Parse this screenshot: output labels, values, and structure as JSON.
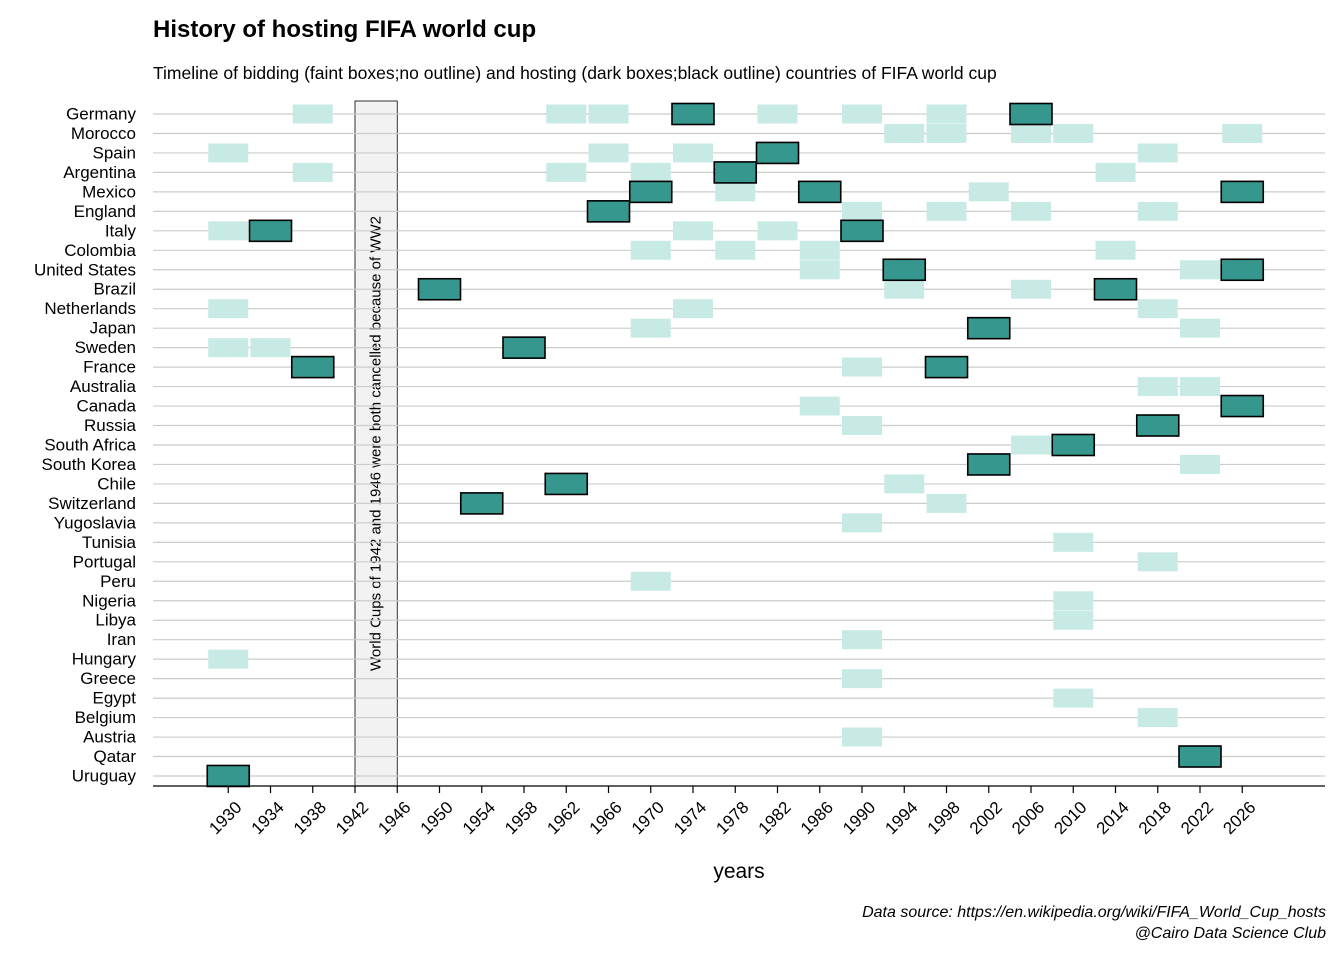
{
  "title": "History of hosting FIFA world cup",
  "subtitle": "Timeline of bidding (faint boxes;no outline) and hosting (dark boxes;black outline) countries of FIFA world cup",
  "caption": {
    "line1": "Data source: https://en.wikipedia.org/wiki/FIFA_World_Cup_hosts",
    "line2": "@Cairo Data Science Club"
  },
  "colors": {
    "host_fill": "#36978F",
    "bid_fill": "#C8EAE5",
    "gridline": "#CCCCCC",
    "annotation_fill": "#F2F2F2"
  },
  "chart_data": {
    "type": "timeline",
    "xlabel": "years",
    "ylabel": "",
    "x_ticks": [
      1930,
      1934,
      1938,
      1942,
      1946,
      1950,
      1954,
      1958,
      1962,
      1966,
      1970,
      1974,
      1978,
      1982,
      1986,
      1990,
      1994,
      1998,
      2002,
      2006,
      2010,
      2014,
      2018,
      2022,
      2026
    ],
    "xlim": [
      1926.5,
      2031
    ],
    "annotation": {
      "text": "World Cups of 1942 and 1946 were both cancelled because of WW2",
      "x_start": 1942,
      "x_end": 1946
    },
    "countries": [
      "Germany",
      "Morocco",
      "Spain",
      "Argentina",
      "Mexico",
      "England",
      "Italy",
      "Colombia",
      "United States",
      "Brazil",
      "Netherlands",
      "Japan",
      "Sweden",
      "France",
      "Australia",
      "Canada",
      "Russia",
      "South Africa",
      "South Korea",
      "Chile",
      "Switzerland",
      "Yugoslavia",
      "Tunisia",
      "Portugal",
      "Peru",
      "Nigeria",
      "Libya",
      "Iran",
      "Hungary",
      "Greece",
      "Egypt",
      "Belgium",
      "Austria",
      "Qatar",
      "Uruguay"
    ],
    "hosted": {
      "Germany": [
        1974,
        2006
      ],
      "Spain": [
        1982
      ],
      "Argentina": [
        1978
      ],
      "Mexico": [
        1970,
        1986,
        2026
      ],
      "England": [
        1966
      ],
      "Italy": [
        1934,
        1990
      ],
      "United States": [
        1994,
        2026
      ],
      "Brazil": [
        1950,
        2014
      ],
      "Japan": [
        2002
      ],
      "Sweden": [
        1958
      ],
      "France": [
        1938,
        1998
      ],
      "Canada": [
        2026
      ],
      "Russia": [
        2018
      ],
      "South Africa": [
        2010
      ],
      "South Korea": [
        2002
      ],
      "Chile": [
        1962
      ],
      "Switzerland": [
        1954
      ],
      "Qatar": [
        2022
      ],
      "Uruguay": [
        1930
      ]
    },
    "bid": {
      "Germany": [
        1938,
        1962,
        1966,
        1982,
        1990,
        1998
      ],
      "Morocco": [
        1994,
        1998,
        2006,
        2010,
        2026
      ],
      "Spain": [
        1930,
        1966,
        1974,
        2018
      ],
      "Argentina": [
        1938,
        1962,
        1970,
        2014
      ],
      "Mexico": [
        1978,
        2002
      ],
      "England": [
        1990,
        1998,
        2006,
        2018
      ],
      "Italy": [
        1930,
        1974,
        1982
      ],
      "Colombia": [
        1970,
        1978,
        1986,
        2014
      ],
      "United States": [
        1986,
        2022
      ],
      "Brazil": [
        1994,
        2006
      ],
      "Netherlands": [
        1930,
        1974,
        2018
      ],
      "Japan": [
        1970,
        2022
      ],
      "Sweden": [
        1930,
        1934
      ],
      "France": [
        1990
      ],
      "Australia": [
        2018,
        2022
      ],
      "Canada": [
        1986
      ],
      "Russia": [
        1990
      ],
      "South Africa": [
        2006
      ],
      "South Korea": [
        2022
      ],
      "Chile": [
        1994
      ],
      "Switzerland": [
        1998
      ],
      "Yugoslavia": [
        1990
      ],
      "Tunisia": [
        2010
      ],
      "Portugal": [
        2018
      ],
      "Peru": [
        1970
      ],
      "Nigeria": [
        2010
      ],
      "Libya": [
        2010
      ],
      "Iran": [
        1990
      ],
      "Hungary": [
        1930
      ],
      "Greece": [
        1990
      ],
      "Egypt": [
        2010
      ],
      "Belgium": [
        2018
      ],
      "Austria": [
        1990
      ]
    }
  }
}
